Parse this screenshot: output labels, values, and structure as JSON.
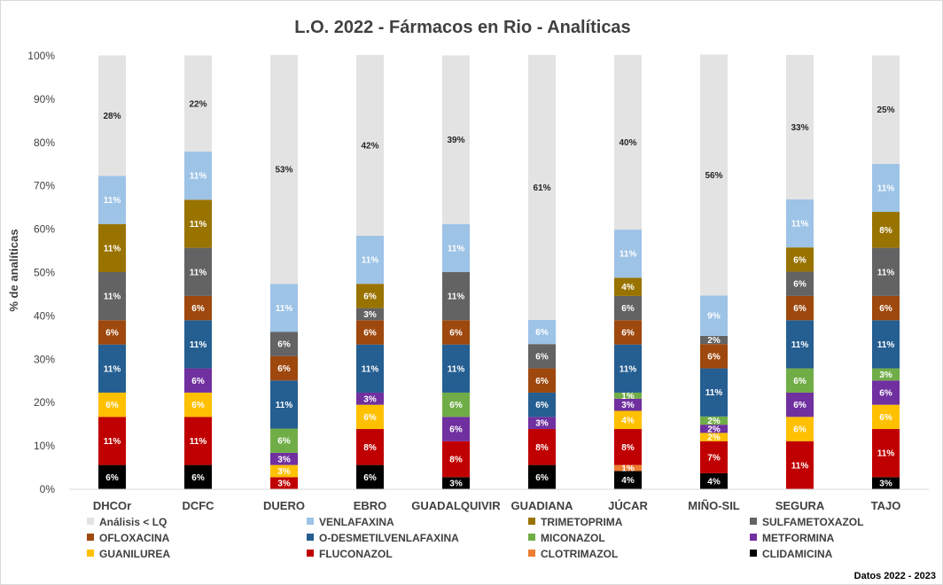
{
  "chart_data": {
    "type": "bar",
    "stacked": true,
    "title": "L.O. 2022 - Fármacos en Rio - Analíticas",
    "xlabel": "",
    "ylabel": "% de analíticas",
    "ylim": [
      0,
      100
    ],
    "y_ticks": [
      "0%",
      "10%",
      "20%",
      "30%",
      "40%",
      "50%",
      "60%",
      "70%",
      "80%",
      "90%",
      "100%"
    ],
    "grid": false,
    "legend_position": "bottom",
    "categories": [
      "DHCOr",
      "DCFC",
      "DUERO",
      "EBRO",
      "GUADALQUIVIR",
      "GUADIANA",
      "JÚCAR",
      "MIÑO-SIL",
      "SEGURA",
      "TAJO"
    ],
    "series": [
      {
        "name": "CLIDAMICINA",
        "color": "#000000",
        "label_color": "#ffffff",
        "values": [
          5.6,
          5.6,
          0,
          5.6,
          2.8,
          5.6,
          4.2,
          3.7,
          0,
          2.8
        ],
        "labels": [
          "6%",
          "6%",
          "",
          "6%",
          "3%",
          "6%",
          "4%",
          "4%",
          "",
          "3%"
        ]
      },
      {
        "name": "CLOTRIMAZOL",
        "color": "#ed7d31",
        "label_color": "#ffffff",
        "values": [
          0,
          0,
          0,
          0,
          0,
          0,
          1.4,
          0,
          0,
          0
        ],
        "labels": [
          "",
          "",
          "",
          "",
          "",
          "",
          "1%",
          "",
          "",
          ""
        ]
      },
      {
        "name": "FLUCONAZOL",
        "color": "#c00000",
        "label_color": "#ffffff",
        "values": [
          11.1,
          11.1,
          2.8,
          8.3,
          8.3,
          8.3,
          8.3,
          7.4,
          11.1,
          11.1
        ],
        "labels": [
          "11%",
          "11%",
          "3%",
          "8%",
          "8%",
          "8%",
          "8%",
          "7%",
          "11%",
          "11%"
        ]
      },
      {
        "name": "GUANILUREA",
        "color": "#ffc000",
        "label_color": "#ffffff",
        "values": [
          5.6,
          5.6,
          2.8,
          5.6,
          0,
          0,
          4.2,
          1.9,
          5.6,
          5.6
        ],
        "labels": [
          "6%",
          "6%",
          "3%",
          "6%",
          "",
          "",
          "4%",
          "2%",
          "6%",
          "6%"
        ]
      },
      {
        "name": "METFORMINA",
        "color": "#7030a0",
        "label_color": "#ffffff",
        "values": [
          0,
          5.6,
          2.8,
          2.8,
          5.6,
          2.8,
          2.8,
          1.9,
          5.6,
          5.6
        ],
        "labels": [
          "",
          "6%",
          "3%",
          "3%",
          "6%",
          "3%",
          "3%",
          "2%",
          "6%",
          "6%"
        ]
      },
      {
        "name": "MICONAZOL",
        "color": "#70ad47",
        "label_color": "#ffffff",
        "values": [
          0,
          0,
          5.6,
          0,
          5.6,
          0,
          1.4,
          1.9,
          5.6,
          2.8
        ],
        "labels": [
          "",
          "",
          "6%",
          "",
          "6%",
          "",
          "1%",
          "2%",
          "6%",
          "3%"
        ]
      },
      {
        "name": "O-DESMETILVENLAFAXINA",
        "color": "#255e91",
        "label_color": "#ffffff",
        "values": [
          11.1,
          11.1,
          11.1,
          11.1,
          11.1,
          5.6,
          11.1,
          11.1,
          11.1,
          11.1
        ],
        "labels": [
          "11%",
          "11%",
          "11%",
          "11%",
          "11%",
          "6%",
          "11%",
          "11%",
          "11%",
          "11%"
        ]
      },
      {
        "name": "OFLOXACINA",
        "color": "#9e480e",
        "label_color": "#ffffff",
        "values": [
          5.6,
          5.6,
          5.6,
          5.6,
          5.6,
          5.6,
          5.6,
          5.6,
          5.6,
          5.6
        ],
        "labels": [
          "6%",
          "6%",
          "6%",
          "6%",
          "6%",
          "6%",
          "6%",
          "6%",
          "6%",
          "6%"
        ]
      },
      {
        "name": "SULFAMETOXAZOL",
        "color": "#636363",
        "label_color": "#ffffff",
        "values": [
          11.1,
          11.1,
          5.6,
          2.8,
          11.1,
          5.6,
          5.6,
          1.9,
          5.6,
          11.1
        ],
        "labels": [
          "11%",
          "11%",
          "6%",
          "3%",
          "11%",
          "6%",
          "6%",
          "2%",
          "6%",
          "11%"
        ]
      },
      {
        "name": "TRIMETOPRIMA",
        "color": "#997300",
        "label_color": "#ffffff",
        "values": [
          11.1,
          11.1,
          0,
          5.6,
          0,
          0,
          4.2,
          0,
          5.6,
          8.3
        ],
        "labels": [
          "11%",
          "11%",
          "",
          "6%",
          "",
          "",
          "4%",
          "",
          "6%",
          "8%"
        ]
      },
      {
        "name": "VENLAFAXINA",
        "color": "#9dc3e6",
        "label_color": "#ffffff",
        "values": [
          11.1,
          11.1,
          11.1,
          11.1,
          11.1,
          5.6,
          11.1,
          9.3,
          11.1,
          11.1
        ],
        "labels": [
          "11%",
          "11%",
          "11%",
          "11%",
          "11%",
          "6%",
          "11%",
          "9%",
          "11%",
          "11%"
        ]
      },
      {
        "name": "Análisis < LQ",
        "color": "#e3e3e3",
        "label_color": "#262626",
        "values": [
          27.8,
          22.2,
          52.8,
          41.7,
          38.9,
          61.1,
          40.3,
          55.6,
          33.3,
          25.0
        ],
        "labels": [
          "28%",
          "22%",
          "53%",
          "42%",
          "39%",
          "61%",
          "40%",
          "56%",
          "33%",
          "25%"
        ]
      }
    ],
    "legend_order": [
      "Análisis < LQ",
      "VENLAFAXINA",
      "TRIMETOPRIMA",
      "SULFAMETOXAZOL",
      "OFLOXACINA",
      "O-DESMETILVENLAFAXINA",
      "MICONAZOL",
      "METFORMINA",
      "GUANILUREA",
      "FLUCONAZOL",
      "CLOTRIMAZOL",
      "CLIDAMICINA"
    ],
    "footnote": "Datos 2022 - 2023"
  }
}
